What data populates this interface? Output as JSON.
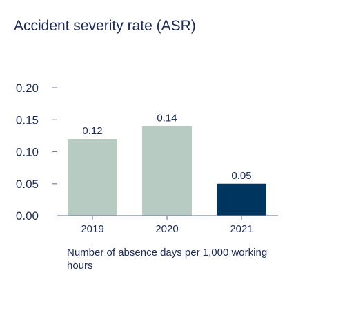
{
  "chart_data": {
    "type": "bar",
    "title": "Accident severity rate (ASR)",
    "xlabel": "",
    "ylabel": "",
    "categories": [
      "2019",
      "2020",
      "2021"
    ],
    "values": [
      0.12,
      0.14,
      0.05
    ],
    "value_labels": [
      "0.12",
      "0.14",
      "0.05"
    ],
    "bar_colors": [
      "#b8cbc2",
      "#b8cbc2",
      "#00355f"
    ],
    "ylim": [
      0,
      0.2
    ],
    "y_ticks": [
      0,
      0.05,
      0.1,
      0.15,
      0.2
    ],
    "y_tick_labels": [
      "0.00",
      "0.05",
      "0.10",
      "0.15",
      "0.20"
    ],
    "grid": false,
    "footnote": "Number of absence days per 1,000 working hours"
  },
  "colors": {
    "text": "#1c2b5a",
    "axis": "#7a86a6",
    "highlight_bar": "#00355f",
    "bar": "#b8cbc2"
  }
}
